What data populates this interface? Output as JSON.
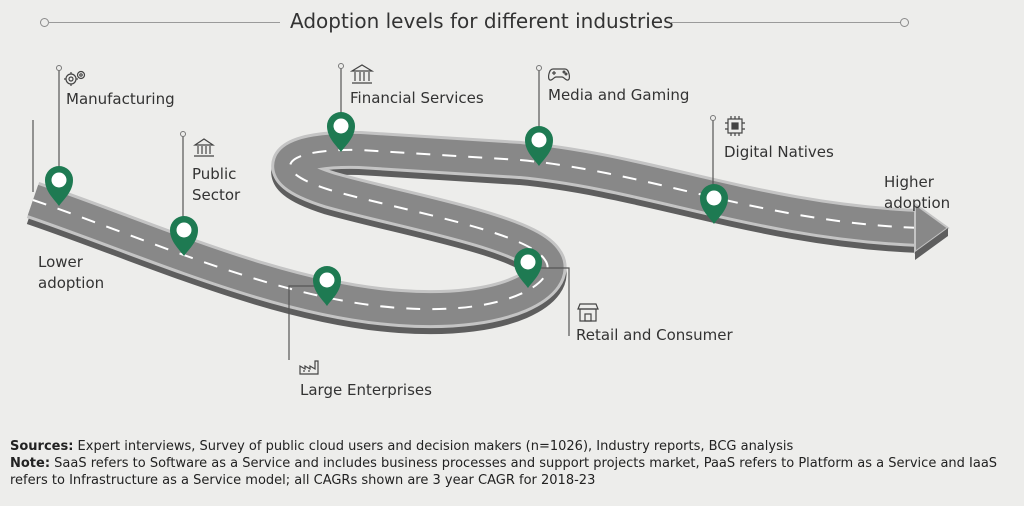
{
  "title": "Adoption levels for different industries",
  "lower_label": [
    "Lower",
    "adoption"
  ],
  "higher_label": [
    "Higher",
    "adoption"
  ],
  "industries": [
    {
      "label": "Manufacturing",
      "icon": "gears-icon"
    },
    {
      "label": "Public\nSector",
      "icon": "government-building-icon"
    },
    {
      "label": "Large Enterprises",
      "icon": "factory-icon"
    },
    {
      "label": "Financial Services",
      "icon": "bank-icon"
    },
    {
      "label": "Retail and Consumer",
      "icon": "store-icon"
    },
    {
      "label": "Media and Gaming",
      "icon": "gamepad-icon"
    },
    {
      "label": "Digital Natives",
      "icon": "chip-icon"
    }
  ],
  "sources_label": "Sources:",
  "sources_text": " Expert interviews, Survey of public cloud users and decision makers (n=1026), Industry reports, BCG analysis",
  "note_label": "Note:",
  "note_text": " SaaS refers to Software as a Service and includes business processes and support projects market, PaaS refers to Platform as a Service and IaaS refers to Infrastructure as a Service model; all CAGRs shown are 3 year CAGR for 2018-23",
  "colors": {
    "pin": "#1e7a52",
    "road": "#8a8a8a",
    "road_edge": "#bdbdbd",
    "road_side": "#5e5e5e"
  }
}
